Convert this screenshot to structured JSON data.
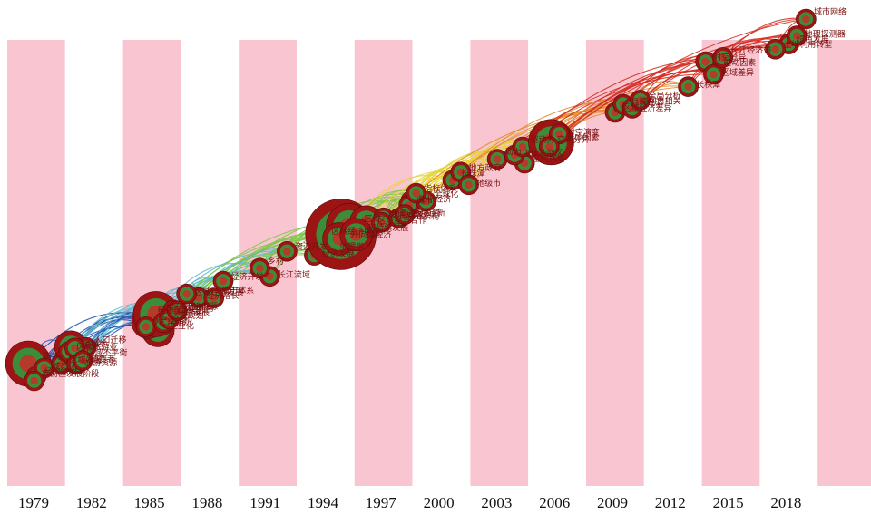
{
  "chart_data": {
    "type": "timeline",
    "title": "",
    "xlabel": "",
    "ylabel": "",
    "years": [
      "1979",
      "1982",
      "1985",
      "1988",
      "1991",
      "1994",
      "1997",
      "2000",
      "2003",
      "2006",
      "2009",
      "2012",
      "2015",
      "2018"
    ],
    "year_range": [
      1979,
      2021
    ],
    "slice_colors": [
      "#f9c5d1",
      "#ffffff"
    ],
    "link_palette": [
      "#1f4fb0",
      "#5bb8c8",
      "#7fc64a",
      "#e6d23a",
      "#e08a2a",
      "#d42a1e"
    ],
    "keywords": [
      {
        "label": "影响",
        "year": 1979,
        "size": 3
      },
      {
        "label": "经济影响",
        "year": 1979,
        "size": 1
      },
      {
        "label": "城市化",
        "year": 1979,
        "size": 1
      },
      {
        "label": "旅游区发展阶段",
        "year": 1979,
        "size": 1
      },
      {
        "label": "区域发展",
        "year": 1980,
        "size": 1
      },
      {
        "label": "旅游",
        "year": 1981,
        "size": 2
      },
      {
        "label": "区域不平衡",
        "year": 1981,
        "size": 1
      },
      {
        "label": "区域旅游业",
        "year": 1981,
        "size": 1
      },
      {
        "label": "旅游资源",
        "year": 1981,
        "size": 1
      },
      {
        "label": "人口迁移",
        "year": 1982,
        "size": 1
      },
      {
        "label": "地理学",
        "year": 1981,
        "size": 1
      },
      {
        "label": "消费者",
        "year": 1981,
        "size": 1
      },
      {
        "label": "经济区",
        "year": 1985,
        "size": 1
      },
      {
        "label": "工业化",
        "year": 1985,
        "size": 2
      },
      {
        "label": "产业结构",
        "year": 1985,
        "size": 2
      },
      {
        "label": "区域经济",
        "year": 1985,
        "size": 3
      },
      {
        "label": "人口迁移",
        "year": 1985,
        "size": 1
      },
      {
        "label": "土地利用",
        "year": 1986,
        "size": 1
      },
      {
        "label": "区域规划",
        "year": 1986,
        "size": 1
      },
      {
        "label": "工业生产",
        "year": 1986,
        "size": 1
      },
      {
        "label": "经济增长",
        "year": 1987,
        "size": 1
      },
      {
        "label": "综合发展",
        "year": 1986,
        "size": 1
      },
      {
        "label": "土地资源",
        "year": 1986,
        "size": 1
      },
      {
        "label": "区域经济发展",
        "year": 1987,
        "size": 1
      },
      {
        "label": "城市体系",
        "year": 1988,
        "size": 1
      },
      {
        "label": "经济开发",
        "year": 1989,
        "size": 1
      },
      {
        "label": "长江流域",
        "year": 1991,
        "size": 1
      },
      {
        "label": "乡村",
        "year": 1991,
        "size": 1
      },
      {
        "label": "资源开发",
        "year": 1992,
        "size": 1
      },
      {
        "label": "经济发展",
        "year": 1993,
        "size": 1
      },
      {
        "label": "区域经济学",
        "year": 1994,
        "size": 1
      },
      {
        "label": "地理学",
        "year": 1994,
        "size": 1
      },
      {
        "label": "中国",
        "year": 1995,
        "size": 5
      },
      {
        "label": "区域",
        "year": 1995,
        "size": 3
      },
      {
        "label": "外向型经济",
        "year": 1995,
        "size": 2
      },
      {
        "label": "区域经济合作",
        "year": 1996,
        "size": 2
      },
      {
        "label": "可持续发展",
        "year": 1996,
        "size": 2
      },
      {
        "label": "外商直接投资",
        "year": 1997,
        "size": 1
      },
      {
        "label": "知识经济",
        "year": 1998,
        "size": 1
      },
      {
        "label": "发展战略",
        "year": 1997,
        "size": 1
      },
      {
        "label": "城市",
        "year": 1998,
        "size": 1
      },
      {
        "label": "空间结构",
        "year": 1998,
        "size": 1
      },
      {
        "label": "全球化",
        "year": 1999,
        "size": 1
      },
      {
        "label": "指标体系",
        "year": 1999,
        "size": 1
      },
      {
        "label": "区域创新",
        "year": 1998,
        "size": 1
      },
      {
        "label": "长株潭",
        "year": 2001,
        "size": 1
      },
      {
        "label": "地方政府",
        "year": 2001,
        "size": 1
      },
      {
        "label": "地级市",
        "year": 2001,
        "size": 1
      },
      {
        "label": "动力",
        "year": 2003,
        "size": 1
      },
      {
        "label": "空间格局",
        "year": 2004,
        "size": 1
      },
      {
        "label": "主体功能区",
        "year": 2004,
        "size": 1
      },
      {
        "label": "驱动力",
        "year": 2004,
        "size": 1
      },
      {
        "label": "影响因素",
        "year": 2006,
        "size": 3
      },
      {
        "label": "时空演变",
        "year": 2006,
        "size": 1
      },
      {
        "label": "空间分异",
        "year": 2006,
        "size": 1
      },
      {
        "label": "区域经济差异",
        "year": 2009,
        "size": 1
      },
      {
        "label": "县域经济",
        "year": 2009,
        "size": 1
      },
      {
        "label": "空间自相关",
        "year": 2010,
        "size": 1
      },
      {
        "label": "全局分析",
        "year": 2010,
        "size": 1
      },
      {
        "label": "长株潭",
        "year": 2013,
        "size": 1
      },
      {
        "label": "驱动因素",
        "year": 2014,
        "size": 1
      },
      {
        "label": "时空分异",
        "year": 2014,
        "size": 1
      },
      {
        "label": "区域差异",
        "year": 2014,
        "size": 1
      },
      {
        "label": "长江经济带",
        "year": 2015,
        "size": 1
      },
      {
        "label": "绿色发展",
        "year": 2018,
        "size": 1
      },
      {
        "label": "地理探测器",
        "year": 2018,
        "size": 1
      },
      {
        "label": "城市网络",
        "year": 2019,
        "size": 1
      },
      {
        "label": "土地利用转型",
        "year": 2017,
        "size": 1
      }
    ]
  }
}
